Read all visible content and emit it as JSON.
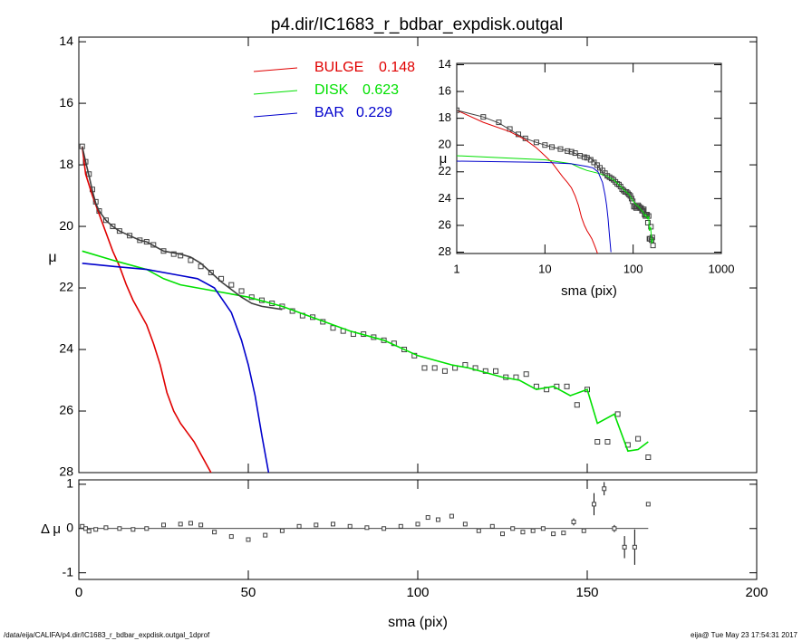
{
  "chart_data": [
    {
      "type": "line",
      "title": "p4.dir/IC1683_r_bdbar_expdisk.outgal",
      "ylabel": "μ",
      "xlim": [
        0,
        200
      ],
      "ylim": [
        13.85,
        28
      ],
      "y_inverted": true,
      "yticks": [
        14,
        16,
        18,
        20,
        22,
        24,
        26,
        28
      ],
      "points": {
        "color": "#404040",
        "x": [
          1,
          2,
          3,
          4,
          5,
          6,
          8,
          10,
          12,
          15,
          18,
          20,
          22,
          25,
          28,
          30,
          33,
          36,
          39,
          42,
          45,
          48,
          51,
          54,
          57,
          60,
          63,
          66,
          69,
          72,
          75,
          78,
          81,
          84,
          87,
          90,
          93,
          96,
          99,
          102,
          105,
          108,
          111,
          114,
          117,
          120,
          123,
          126,
          129,
          132,
          135,
          138,
          141,
          144,
          147,
          150,
          153,
          156,
          159,
          162,
          165,
          168
        ],
        "values": [
          17.4,
          17.9,
          18.3,
          18.8,
          19.2,
          19.5,
          19.8,
          20.0,
          20.15,
          20.3,
          20.45,
          20.5,
          20.6,
          20.8,
          20.9,
          20.95,
          21.1,
          21.3,
          21.5,
          21.7,
          21.9,
          22.1,
          22.3,
          22.4,
          22.5,
          22.6,
          22.75,
          22.9,
          22.95,
          23.1,
          23.3,
          23.4,
          23.5,
          23.5,
          23.6,
          23.7,
          23.8,
          24.0,
          24.2,
          24.6,
          24.6,
          24.7,
          24.6,
          24.5,
          24.6,
          24.7,
          24.7,
          24.9,
          24.9,
          24.8,
          25.2,
          25.3,
          25.2,
          25.2,
          25.8,
          25.3,
          27.0,
          27.0,
          26.1,
          27.1,
          26.9,
          27.5
        ]
      },
      "series": [
        {
          "name": "BULGE",
          "fraction": 0.148,
          "color": "#e00000",
          "x": [
            1,
            2,
            4,
            6,
            8,
            10,
            12,
            14,
            16,
            18,
            20,
            22,
            24,
            26,
            28,
            30,
            32,
            34,
            36,
            38,
            40
          ],
          "values": [
            17.4,
            18.3,
            19.0,
            19.6,
            20.2,
            20.8,
            21.3,
            21.9,
            22.4,
            22.8,
            23.2,
            23.8,
            24.5,
            25.4,
            26.0,
            26.4,
            26.7,
            27.0,
            27.4,
            27.8,
            28.2
          ]
        },
        {
          "name": "DISK",
          "fraction": 0.623,
          "color": "#00e000",
          "x": [
            1,
            10,
            20,
            25,
            30,
            40,
            50,
            60,
            70,
            80,
            90,
            100,
            105,
            110,
            115,
            120,
            125,
            130,
            135,
            140,
            145,
            150,
            153,
            158,
            162,
            165,
            168
          ],
          "values": [
            20.8,
            21.1,
            21.4,
            21.7,
            21.9,
            22.1,
            22.3,
            22.6,
            23.0,
            23.4,
            23.7,
            24.2,
            24.35,
            24.5,
            24.6,
            24.75,
            24.9,
            25.0,
            25.3,
            25.2,
            25.5,
            25.3,
            26.4,
            26.1,
            27.3,
            27.25,
            27.0
          ]
        },
        {
          "name": "BAR",
          "fraction": 0.229,
          "color": "#0000cc",
          "x": [
            1,
            10,
            20,
            30,
            35,
            40,
            45,
            48,
            50,
            52,
            54,
            56
          ],
          "values": [
            21.2,
            21.3,
            21.4,
            21.6,
            21.7,
            22.0,
            22.8,
            23.7,
            24.5,
            25.5,
            26.8,
            28.0
          ]
        },
        {
          "color": "#404040",
          "x": [
            1,
            2,
            3,
            4,
            5,
            6,
            8,
            10,
            12,
            15,
            18,
            20,
            25,
            30,
            33,
            36,
            39,
            42,
            45,
            48,
            51,
            54,
            57,
            60
          ],
          "values": [
            17.4,
            17.9,
            18.35,
            18.85,
            19.25,
            19.5,
            19.8,
            20.0,
            20.15,
            20.3,
            20.45,
            20.5,
            20.8,
            20.9,
            21.0,
            21.2,
            21.5,
            21.8,
            22.05,
            22.3,
            22.5,
            22.6,
            22.65,
            22.7
          ]
        }
      ]
    },
    {
      "type": "line",
      "log_x": true,
      "xlabel": "sma (pix)",
      "ylabel": "μ",
      "xlim": [
        1,
        1000
      ],
      "xticks": [
        1,
        10,
        100,
        1000
      ],
      "ylim": [
        13.9,
        28.1
      ],
      "y_inverted": true,
      "yticks": [
        14,
        16,
        18,
        20,
        22,
        24,
        26,
        28
      ]
    },
    {
      "type": "scatter",
      "xlabel": "sma (pix)",
      "ylabel": "Δ μ",
      "xlim": [
        0,
        200
      ],
      "xticks": [
        0,
        50,
        100,
        150,
        200
      ],
      "ylim": [
        -1.15,
        1.1
      ],
      "yticks": [
        -1,
        0,
        1
      ],
      "color": "#404040",
      "x": [
        1,
        2,
        3,
        5,
        8,
        12,
        16,
        20,
        25,
        30,
        33,
        36,
        40,
        45,
        50,
        55,
        60,
        65,
        70,
        75,
        80,
        85,
        90,
        95,
        100,
        103,
        106,
        110,
        114,
        118,
        122,
        125,
        128,
        131,
        134,
        137,
        140,
        143,
        146,
        149,
        152,
        155,
        158,
        161,
        164,
        168
      ],
      "values": [
        0.05,
        0.0,
        -0.06,
        -0.02,
        0.02,
        0.0,
        -0.02,
        0.0,
        0.08,
        0.1,
        0.12,
        0.08,
        -0.08,
        -0.18,
        -0.25,
        -0.15,
        -0.05,
        0.05,
        0.08,
        0.1,
        0.05,
        0.02,
        0.0,
        0.05,
        0.1,
        0.25,
        0.2,
        0.28,
        0.1,
        -0.05,
        0.05,
        -0.12,
        0.0,
        -0.08,
        -0.05,
        0.0,
        -0.12,
        -0.1,
        0.15,
        -0.05,
        0.55,
        0.9,
        0.0,
        -0.42,
        -0.42,
        0.55
      ],
      "errors": [
        0.02,
        0.02,
        0.02,
        0.02,
        0.02,
        0.02,
        0.02,
        0.02,
        0.02,
        0.02,
        0.02,
        0.02,
        0.02,
        0.02,
        0.02,
        0.02,
        0.02,
        0.02,
        0.02,
        0.02,
        0.02,
        0.02,
        0.02,
        0.02,
        0.02,
        0.02,
        0.02,
        0.02,
        0.02,
        0.02,
        0.02,
        0.02,
        0.02,
        0.02,
        0.02,
        0.02,
        0.02,
        0.02,
        0.08,
        0.04,
        0.25,
        0.15,
        0.08,
        0.25,
        0.4,
        0.02
      ]
    }
  ],
  "footer": {
    "path": "/data/eija/CALIFA/p4.dir/IC1683_r_bdbar_expdisk.outgal_1dprof",
    "stamp": "eija@  Tue May 23 17:54:31 2017"
  }
}
